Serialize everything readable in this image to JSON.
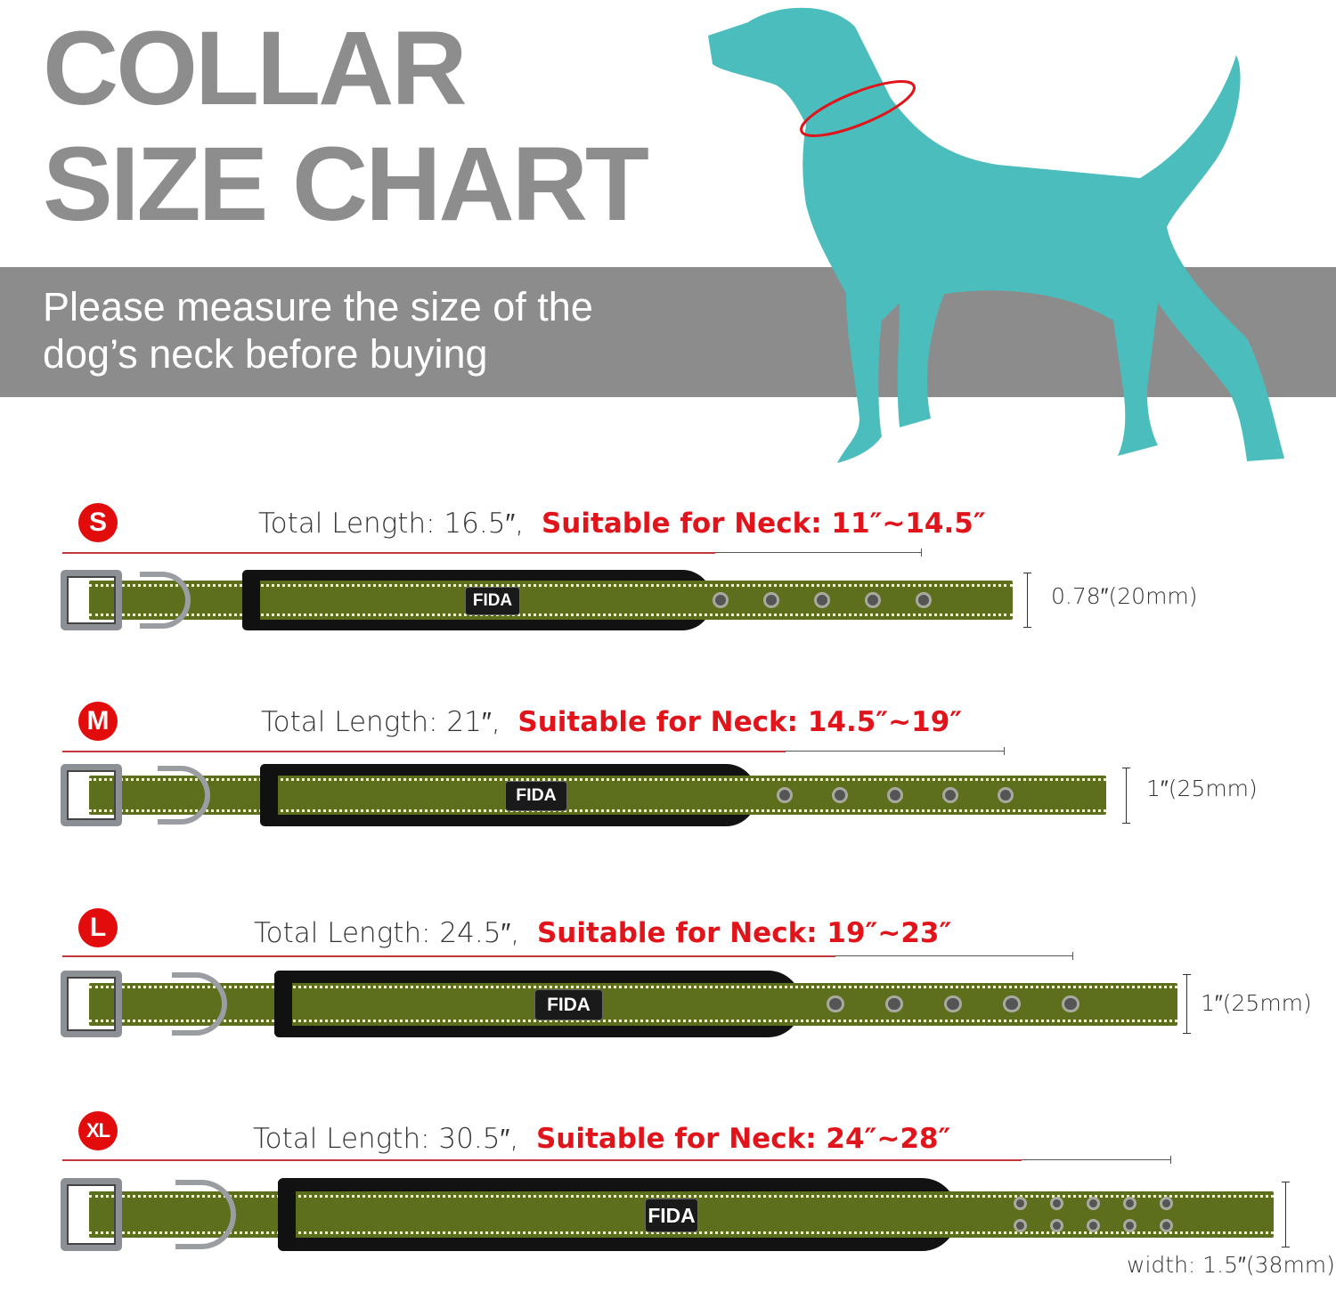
{
  "header": {
    "title_line1": "COLLAR",
    "title_line2": "SIZE CHART"
  },
  "banner": {
    "line1": "Please measure the size of the",
    "line2": "dog’s neck before buying"
  },
  "colors": {
    "dog": "#4bbdbd",
    "accent_red": "#e30c0c",
    "strap_green": "#5d6e1c",
    "banner_grey": "#8c8c8c",
    "title_grey": "#8d8d8d"
  },
  "brand_label": "FIDA",
  "sizes": [
    {
      "size": "S",
      "total_length": "Total Length: 16.5″,",
      "neck": "Suitable for Neck: 11″~14.5″",
      "width": "0.78″(20mm)",
      "holes": 5,
      "hole_rows": 1
    },
    {
      "size": "M",
      "total_length": "Total Length: 21″,",
      "neck": "Suitable for Neck: 14.5″~19″",
      "width": "1″(25mm)",
      "holes": 5,
      "hole_rows": 1
    },
    {
      "size": "L",
      "total_length": "Total Length: 24.5″,",
      "neck": "Suitable for Neck: 19″~23″",
      "width": "1″(25mm)",
      "holes": 5,
      "hole_rows": 1
    },
    {
      "size": "XL",
      "total_length": "Total Length: 30.5″,",
      "neck": "Suitable for Neck: 24″~28″",
      "width": "width: 1.5″(38mm)",
      "holes": 5,
      "hole_rows": 2
    }
  ]
}
